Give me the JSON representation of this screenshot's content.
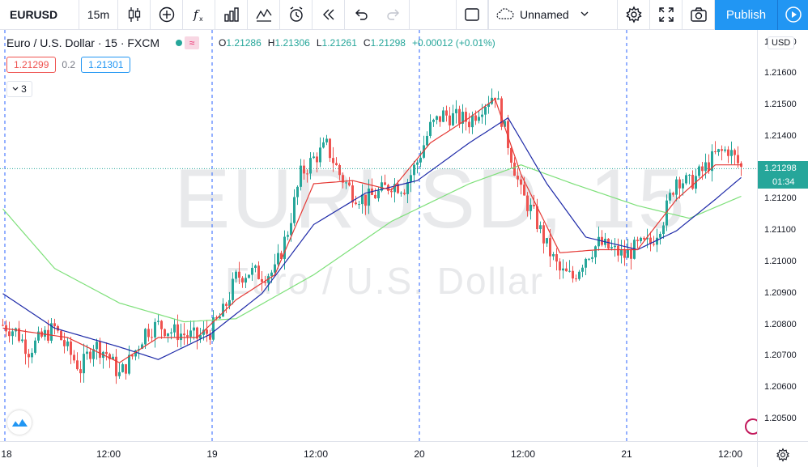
{
  "toolbar": {
    "symbol": "EURUSD",
    "interval": "15m",
    "layout_name": "Unnamed",
    "publish_label": "Publish",
    "icons": [
      "candles-icon",
      "add-compare-icon",
      "indicators-icon",
      "templates-icon",
      "compare-icon",
      "alert-icon",
      "replay-icon",
      "undo-icon",
      "redo-icon",
      "fullscreen-square-icon",
      "cloud-icon",
      "settings-icon",
      "fullscreen-icon",
      "screenshot-icon",
      "play-icon"
    ]
  },
  "legend": {
    "title": "Euro / U.S. Dollar · 15 · FXCM",
    "open_key": "O",
    "open": "1.21286",
    "high_key": "H",
    "high": "1.21306",
    "low_key": "L",
    "low": "1.21261",
    "close_key": "C",
    "close": "1.21298",
    "change": "+0.00012 (+0.01%)",
    "wave_glyph": "≈"
  },
  "trade": {
    "sell": "1.21299",
    "spread": "0.2",
    "buy": "1.21301"
  },
  "indicators_count": "3",
  "watermark": {
    "main": "EURUSD, 15",
    "sub": "Euro / U.S. Dollar"
  },
  "price_axis": {
    "currency": "USD",
    "labels": [
      "1.21700",
      "1.21600",
      "1.21500",
      "1.21400",
      "1.21300",
      "1.21200",
      "1.21100",
      "1.21000",
      "1.20900",
      "1.20800",
      "1.20700",
      "1.20600",
      "1.20500"
    ],
    "last_price": "1.21298",
    "countdown": "01:34"
  },
  "time_axis": {
    "labels": [
      "18",
      "12:00",
      "19",
      "12:00",
      "20",
      "12:00",
      "21",
      "12:00"
    ]
  },
  "colors": {
    "up": "#26a69a",
    "down": "#ef5350",
    "ma_fast": "#e53935",
    "ma_mid": "#1e2aa8",
    "ma_slow": "#7ee07a",
    "accent": "#2196f3",
    "session_line": "#2962ff"
  },
  "chart_data": {
    "type": "candlestick",
    "title": "Euro / U.S. Dollar · 15 · FXCM",
    "ylim": [
      1.2043,
      1.2174
    ],
    "x_ticks": [
      "18",
      "12:00",
      "19",
      "12:00",
      "20",
      "12:00",
      "21",
      "12:00"
    ],
    "y_ticks": [
      1.217,
      1.216,
      1.215,
      1.214,
      1.213,
      1.212,
      1.211,
      1.21,
      1.209,
      1.208,
      1.207,
      1.206,
      1.205
    ],
    "last_price": 1.21298,
    "close_path": [
      [
        0,
        1.208
      ],
      [
        4,
        1.2078
      ],
      [
        8,
        1.2072
      ],
      [
        12,
        1.2076
      ],
      [
        16,
        1.2079
      ],
      [
        20,
        1.2072
      ],
      [
        24,
        1.2066
      ],
      [
        28,
        1.2074
      ],
      [
        32,
        1.2071
      ],
      [
        36,
        1.2064
      ],
      [
        40,
        1.207
      ],
      [
        44,
        1.2078
      ],
      [
        48,
        1.208
      ],
      [
        52,
        1.2078
      ],
      [
        56,
        1.2077
      ],
      [
        60,
        1.2076
      ],
      [
        64,
        1.2078
      ],
      [
        68,
        1.2084
      ],
      [
        72,
        1.2095
      ],
      [
        76,
        1.2097
      ],
      [
        80,
        1.2096
      ],
      [
        84,
        1.2097
      ],
      [
        88,
        1.211
      ],
      [
        92,
        1.2128
      ],
      [
        96,
        1.2133
      ],
      [
        100,
        1.2137
      ],
      [
        104,
        1.2128
      ],
      [
        108,
        1.2122
      ],
      [
        112,
        1.212
      ],
      [
        116,
        1.2122
      ],
      [
        120,
        1.2125
      ],
      [
        124,
        1.2124
      ],
      [
        128,
        1.2132
      ],
      [
        132,
        1.2143
      ],
      [
        136,
        1.2147
      ],
      [
        140,
        1.2146
      ],
      [
        144,
        1.2145
      ],
      [
        148,
        1.215
      ],
      [
        152,
        1.2154
      ],
      [
        156,
        1.2138
      ],
      [
        160,
        1.2122
      ],
      [
        164,
        1.2115
      ],
      [
        168,
        1.2105
      ],
      [
        172,
        1.2097
      ],
      [
        176,
        1.2095
      ],
      [
        180,
        1.2102
      ],
      [
        184,
        1.2106
      ],
      [
        188,
        1.2104
      ],
      [
        192,
        1.2102
      ],
      [
        196,
        1.2105
      ],
      [
        200,
        1.2106
      ],
      [
        204,
        1.2114
      ],
      [
        208,
        1.2127
      ],
      [
        212,
        1.2125
      ],
      [
        216,
        1.2129
      ],
      [
        220,
        1.2134
      ],
      [
        224,
        1.2136
      ],
      [
        228,
        1.213
      ]
    ],
    "ma_fast": [
      [
        0,
        1.2079
      ],
      [
        20,
        1.2076
      ],
      [
        36,
        1.2068
      ],
      [
        48,
        1.2076
      ],
      [
        60,
        1.2076
      ],
      [
        72,
        1.2088
      ],
      [
        84,
        1.2096
      ],
      [
        96,
        1.2125
      ],
      [
        108,
        1.2126
      ],
      [
        120,
        1.2123
      ],
      [
        132,
        1.2138
      ],
      [
        144,
        1.2146
      ],
      [
        152,
        1.2152
      ],
      [
        160,
        1.2128
      ],
      [
        172,
        1.2103
      ],
      [
        184,
        1.2104
      ],
      [
        196,
        1.2104
      ],
      [
        208,
        1.212
      ],
      [
        220,
        1.2131
      ],
      [
        228,
        1.2131
      ]
    ],
    "ma_mid": [
      [
        0,
        1.209
      ],
      [
        16,
        1.2079
      ],
      [
        36,
        1.2073
      ],
      [
        48,
        1.2069
      ],
      [
        64,
        1.2077
      ],
      [
        80,
        1.209
      ],
      [
        96,
        1.2112
      ],
      [
        112,
        1.2122
      ],
      [
        128,
        1.2126
      ],
      [
        144,
        1.2138
      ],
      [
        156,
        1.2146
      ],
      [
        168,
        1.2125
      ],
      [
        180,
        1.2108
      ],
      [
        196,
        1.2104
      ],
      [
        208,
        1.211
      ],
      [
        220,
        1.212
      ],
      [
        228,
        1.2127
      ]
    ],
    "ma_slow": [
      [
        0,
        1.2117
      ],
      [
        16,
        1.2098
      ],
      [
        36,
        1.2087
      ],
      [
        56,
        1.2081
      ],
      [
        72,
        1.2082
      ],
      [
        96,
        1.2096
      ],
      [
        120,
        1.2113
      ],
      [
        144,
        1.2125
      ],
      [
        160,
        1.2131
      ],
      [
        176,
        1.2125
      ],
      [
        196,
        1.2118
      ],
      [
        212,
        1.2114
      ],
      [
        228,
        1.2121
      ]
    ]
  }
}
